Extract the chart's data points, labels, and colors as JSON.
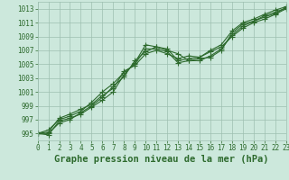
{
  "title": "Graphe pression niveau de la mer (hPa)",
  "xlabel_hours": [
    0,
    1,
    2,
    3,
    4,
    5,
    6,
    7,
    8,
    9,
    10,
    11,
    12,
    13,
    14,
    15,
    16,
    17,
    18,
    19,
    20,
    21,
    22,
    23
  ],
  "series": [
    [
      995.0,
      994.8,
      996.8,
      997.2,
      997.8,
      998.8,
      999.8,
      1001.0,
      1003.5,
      1005.2,
      1007.8,
      1007.5,
      1007.0,
      1006.5,
      1005.5,
      1005.5,
      1006.2,
      1007.2,
      1009.2,
      1010.5,
      1011.2,
      1011.8,
      1012.3,
      1013.2
    ],
    [
      995.0,
      995.5,
      997.0,
      997.5,
      998.2,
      999.5,
      1001.0,
      1002.2,
      1003.8,
      1005.0,
      1007.2,
      1007.2,
      1006.8,
      1005.2,
      1005.5,
      1005.8,
      1006.0,
      1007.0,
      1009.5,
      1010.8,
      1011.2,
      1012.0,
      1012.5,
      1013.1
    ],
    [
      995.0,
      995.2,
      997.2,
      997.8,
      998.5,
      999.2,
      1000.5,
      1001.5,
      1004.0,
      1004.8,
      1006.5,
      1007.0,
      1006.5,
      1005.8,
      1006.2,
      1006.0,
      1007.0,
      1007.8,
      1009.8,
      1011.0,
      1011.5,
      1012.2,
      1012.8,
      1013.3
    ],
    [
      995.0,
      995.0,
      996.5,
      997.0,
      998.0,
      999.0,
      1000.2,
      1001.8,
      1003.2,
      1005.5,
      1006.8,
      1007.5,
      1007.2,
      1005.5,
      1005.8,
      1006.0,
      1006.8,
      1007.5,
      1009.0,
      1010.2,
      1011.0,
      1011.5,
      1012.2,
      1013.0
    ]
  ],
  "line_color": "#2d6a2d",
  "marker": "+",
  "bg_color": "#cce8dc",
  "grid_color": "#9dbfb0",
  "ylim": [
    994,
    1014
  ],
  "yticks": [
    995,
    997,
    999,
    1001,
    1003,
    1005,
    1007,
    1009,
    1011,
    1013
  ],
  "xticks": [
    0,
    1,
    2,
    3,
    4,
    5,
    6,
    7,
    8,
    9,
    10,
    11,
    12,
    13,
    14,
    15,
    16,
    17,
    18,
    19,
    20,
    21,
    22,
    23
  ],
  "title_fontsize": 7.5,
  "tick_fontsize": 5.5,
  "line_width": 0.8,
  "marker_size": 4
}
